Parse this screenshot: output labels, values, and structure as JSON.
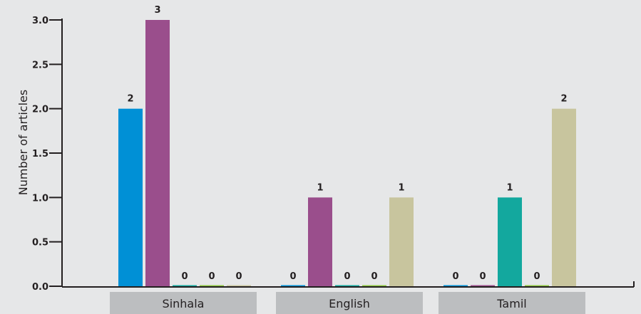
{
  "chart_data": {
    "type": "bar",
    "title": "",
    "xlabel": "",
    "ylabel": "Number of articles",
    "categories": [
      "Sinhala",
      "English",
      "Tamil"
    ],
    "series": [
      {
        "values": [
          2,
          0,
          0
        ],
        "color": "#0090d6"
      },
      {
        "values": [
          3,
          1,
          0
        ],
        "color": "#9a4e8c"
      },
      {
        "values": [
          0,
          0,
          1
        ],
        "color": "#13a89e"
      },
      {
        "values": [
          0,
          0,
          0
        ],
        "color": "#8dc63f"
      },
      {
        "values": [
          0,
          1,
          2
        ],
        "color": "#c8c59e"
      }
    ],
    "yticks": [
      "0.0",
      "0.5",
      "1.0",
      "1.5",
      "2.0",
      "2.5",
      "3.0"
    ],
    "ylim": [
      0,
      3
    ],
    "grid": false,
    "legend": "none",
    "colors": {
      "background": "#e6e7e8",
      "axis": "#231f20",
      "category_band": "#bcbec0"
    }
  }
}
